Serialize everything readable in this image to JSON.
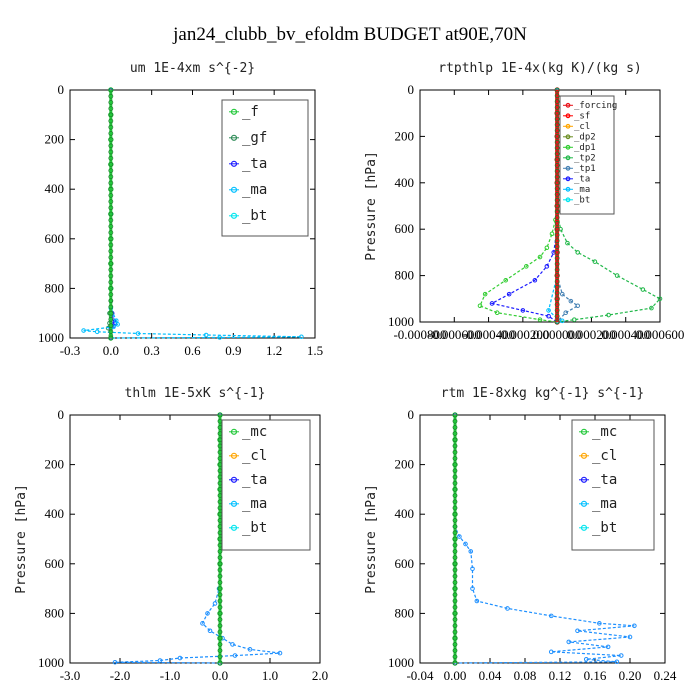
{
  "figure_title": "jan24_clubb_bv_efoldm  BUDGET at90E,70N",
  "colors": {
    "forcing": "#e8141c",
    "sf": "#ff0000",
    "cl": "#ffa500",
    "gf": "#2e8b57",
    "dp2": "#6b8e23",
    "dp1": "#32cd32",
    "tp2": "#22b84a",
    "tp1": "#4682b4",
    "ta": "#1a1aff",
    "ma": "#00bfff",
    "bt": "#00e5ee",
    "f": "#22c93a",
    "mc": "#22c93a"
  },
  "chart_data": [
    {
      "type": "line",
      "title": "um  1E-4xm s^{-2}",
      "ylabel": "",
      "xlim": [
        -0.3,
        1.5
      ],
      "ylim": [
        1000,
        0
      ],
      "xticks": [
        "-0.3",
        "0.0",
        "0.3",
        "0.6",
        "0.9",
        "1.2",
        "1.5"
      ],
      "yticks": [
        "0",
        "200",
        "400",
        "600",
        "800",
        "1000"
      ],
      "legend": [
        "_f",
        "_gf",
        "_ta",
        "_ma",
        "_bt"
      ],
      "series": [
        {
          "name": "_gf",
          "color": "#2e8b57",
          "pts": [
            [
              0,
              0
            ],
            [
              0,
              100
            ],
            [
              0,
              300
            ],
            [
              0,
              500
            ],
            [
              0,
              700
            ],
            [
              0,
              850
            ],
            [
              -0.01,
              900
            ],
            [
              -0.01,
              940
            ],
            [
              -0.02,
              960
            ],
            [
              0,
              990
            ],
            [
              0,
              1000
            ]
          ]
        },
        {
          "name": "_ta",
          "color": "#1a1aff",
          "pts": [
            [
              0,
              0
            ],
            [
              0,
              500
            ],
            [
              0,
              800
            ],
            [
              0.01,
              900
            ],
            [
              0.02,
              930
            ],
            [
              0.03,
              940
            ],
            [
              0.02,
              950
            ],
            [
              0,
              960
            ],
            [
              0,
              1000
            ]
          ]
        },
        {
          "name": "_ma",
          "color": "#00bfff",
          "pts": [
            [
              0,
              0
            ],
            [
              0,
              500
            ],
            [
              0,
              800
            ],
            [
              0,
              880
            ],
            [
              0.04,
              930
            ],
            [
              0.05,
              945
            ],
            [
              0.02,
              955
            ],
            [
              -0.2,
              970
            ],
            [
              -0.1,
              975
            ],
            [
              0.2,
              982
            ],
            [
              0.7,
              988
            ],
            [
              1.4,
              995
            ],
            [
              0.8,
              998
            ],
            [
              0,
              1000
            ]
          ]
        },
        {
          "name": "_f",
          "color": "#22c93a",
          "pts": [
            [
              0,
              0
            ],
            [
              0,
              100
            ],
            [
              0,
              200
            ],
            [
              0,
              300
            ],
            [
              0,
              400
            ],
            [
              0,
              500
            ],
            [
              0,
              600
            ],
            [
              0,
              700
            ],
            [
              0,
              800
            ],
            [
              0,
              900
            ],
            [
              0,
              1000
            ]
          ]
        }
      ]
    },
    {
      "type": "line",
      "title": "rtpthlp  1E-4x(kg K)/(kg s)",
      "ylabel": "Pressure [hPa]",
      "xlim": [
        -0.0008,
        0.0006
      ],
      "ylim": [
        1000,
        0
      ],
      "xticks": [
        "-0.000800",
        "-0.000600",
        "-0.000400",
        "-0.000200",
        "0.000000",
        "0.000200",
        "0.000400",
        "0.000600"
      ],
      "yticks": [
        "0",
        "200",
        "400",
        "600",
        "800",
        "1000"
      ],
      "legend": [
        "_forcing",
        "_sf",
        "_cl",
        "_dp2",
        "_dp1",
        "_tp2",
        "_tp1",
        "_ta",
        "_ma",
        "_bt"
      ],
      "series": [
        {
          "name": "_tp2",
          "color": "#32cd32",
          "pts": [
            [
              0,
              0
            ],
            [
              0,
              500
            ],
            [
              -1e-05,
              560
            ],
            [
              -3e-05,
              620
            ],
            [
              -6e-05,
              680
            ],
            [
              -0.0001,
              720
            ],
            [
              -0.00018,
              760
            ],
            [
              -0.0003,
              820
            ],
            [
              -0.00042,
              880
            ],
            [
              -0.00045,
              930
            ],
            [
              -0.00035,
              960
            ],
            [
              -0.0001,
              990
            ],
            [
              0,
              1000
            ]
          ]
        },
        {
          "name": "_dp1",
          "color": "#22b84a",
          "pts": [
            [
              0,
              0
            ],
            [
              0,
              520
            ],
            [
              2e-05,
              600
            ],
            [
              6e-05,
              660
            ],
            [
              0.00012,
              700
            ],
            [
              0.00022,
              740
            ],
            [
              0.00035,
              800
            ],
            [
              0.0005,
              860
            ],
            [
              0.0006,
              900
            ],
            [
              0.00055,
              940
            ],
            [
              0.0003,
              970
            ],
            [
              0.0001,
              990
            ],
            [
              0,
              1000
            ]
          ]
        },
        {
          "name": "_ta",
          "color": "#1a1aff",
          "pts": [
            [
              0,
              0
            ],
            [
              0,
              600
            ],
            [
              -2e-05,
              700
            ],
            [
              -6e-05,
              760
            ],
            [
              -0.00013,
              820
            ],
            [
              -0.00028,
              880
            ],
            [
              -0.00038,
              920
            ],
            [
              -0.0002,
              950
            ],
            [
              -5e-05,
              975
            ],
            [
              0,
              1000
            ]
          ]
        },
        {
          "name": "_tp1",
          "color": "#4682b4",
          "pts": [
            [
              0,
              0
            ],
            [
              0,
              700
            ],
            [
              0,
              800
            ],
            [
              3e-05,
              880
            ],
            [
              8e-05,
              910
            ],
            [
              0.00012,
              930
            ],
            [
              5e-05,
              960
            ],
            [
              0,
              1000
            ]
          ]
        },
        {
          "name": "_ma",
          "color": "#00bfff",
          "pts": [
            [
              0,
              0
            ],
            [
              0,
              800
            ],
            [
              -5e-05,
              950
            ],
            [
              0,
              985
            ],
            [
              3e-05,
              995
            ],
            [
              0,
              1000
            ]
          ]
        },
        {
          "name": "_forcing",
          "color": "#e8141c",
          "pts": [
            [
              0,
              0
            ],
            [
              0,
              100
            ],
            [
              0,
              200
            ],
            [
              0,
              300
            ],
            [
              0,
              400
            ],
            [
              0,
              500
            ],
            [
              0,
              600
            ],
            [
              0,
              700
            ],
            [
              0,
              800
            ],
            [
              0,
              900
            ],
            [
              0,
              1000
            ]
          ]
        }
      ]
    },
    {
      "type": "line",
      "title": "thlm  1E-5xK s^{-1}",
      "ylabel": "Pressure [hPa]",
      "xlim": [
        -3.0,
        2.0
      ],
      "ylim": [
        1000,
        0
      ],
      "xticks": [
        "-3.0",
        "-2.0",
        "-1.0",
        "0.0",
        "1.0",
        "2.0"
      ],
      "yticks": [
        "0",
        "200",
        "400",
        "600",
        "800",
        "1000"
      ],
      "legend": [
        "_mc",
        "_cl",
        "_ta",
        "_ma",
        "_bt"
      ],
      "series": [
        {
          "name": "_ma",
          "color": "#1e90ff",
          "pts": [
            [
              0,
              0
            ],
            [
              0,
              100
            ],
            [
              0,
              200
            ],
            [
              0,
              300
            ],
            [
              0,
              400
            ],
            [
              0,
              500
            ],
            [
              0,
              600
            ],
            [
              -0.02,
              700
            ],
            [
              -0.1,
              760
            ],
            [
              -0.25,
              800
            ],
            [
              -0.35,
              840
            ],
            [
              -0.2,
              870
            ],
            [
              0.05,
              900
            ],
            [
              0.25,
              925
            ],
            [
              0.6,
              945
            ],
            [
              1.2,
              960
            ],
            [
              0.3,
              970
            ],
            [
              -0.8,
              980
            ],
            [
              -1.2,
              990
            ],
            [
              -2.1,
              997
            ],
            [
              0,
              1000
            ]
          ]
        },
        {
          "name": "_mc",
          "color": "#22c93a",
          "pts": [
            [
              0,
              0
            ],
            [
              0,
              100
            ],
            [
              0,
              200
            ],
            [
              0,
              300
            ],
            [
              0,
              400
            ],
            [
              0,
              500
            ],
            [
              0,
              600
            ],
            [
              0,
              700
            ],
            [
              0,
              800
            ],
            [
              0,
              900
            ],
            [
              0,
              1000
            ]
          ]
        }
      ]
    },
    {
      "type": "line",
      "title": "rtm  1E-8xkg kg^{-1} s^{-1}",
      "ylabel": "Pressure [hPa]",
      "xlim": [
        -0.04,
        0.24
      ],
      "ylim": [
        1000,
        0
      ],
      "xticks": [
        "-0.04",
        "0.00",
        "0.04",
        "0.08",
        "0.12",
        "0.16",
        "0.20",
        "0.24"
      ],
      "yticks": [
        "0",
        "200",
        "400",
        "600",
        "800",
        "1000"
      ],
      "legend": [
        "_mc",
        "_cl",
        "_ta",
        "_ma",
        "_bt"
      ],
      "series": [
        {
          "name": "_ma",
          "color": "#1e90ff",
          "pts": [
            [
              0,
              0
            ],
            [
              0,
              300
            ],
            [
              0,
              450
            ],
            [
              0.005,
              490
            ],
            [
              0.012,
              520
            ],
            [
              0.018,
              550
            ],
            [
              0.02,
              620
            ],
            [
              0.02,
              700
            ],
            [
              0.025,
              750
            ],
            [
              0.06,
              780
            ],
            [
              0.11,
              810
            ],
            [
              0.165,
              840
            ],
            [
              0.205,
              850
            ],
            [
              0.14,
              870
            ],
            [
              0.2,
              895
            ],
            [
              0.13,
              915
            ],
            [
              0.175,
              935
            ],
            [
              0.11,
              955
            ],
            [
              0.19,
              970
            ],
            [
              0.15,
              985
            ],
            [
              0.185,
              995
            ],
            [
              0,
              1000
            ]
          ]
        },
        {
          "name": "_mc",
          "color": "#22c93a",
          "pts": [
            [
              0,
              0
            ],
            [
              0,
              100
            ],
            [
              0,
              200
            ],
            [
              0,
              300
            ],
            [
              0,
              400
            ],
            [
              0,
              500
            ],
            [
              0,
              600
            ],
            [
              0,
              700
            ],
            [
              0,
              800
            ],
            [
              0,
              900
            ],
            [
              0,
              1000
            ]
          ]
        }
      ]
    }
  ]
}
